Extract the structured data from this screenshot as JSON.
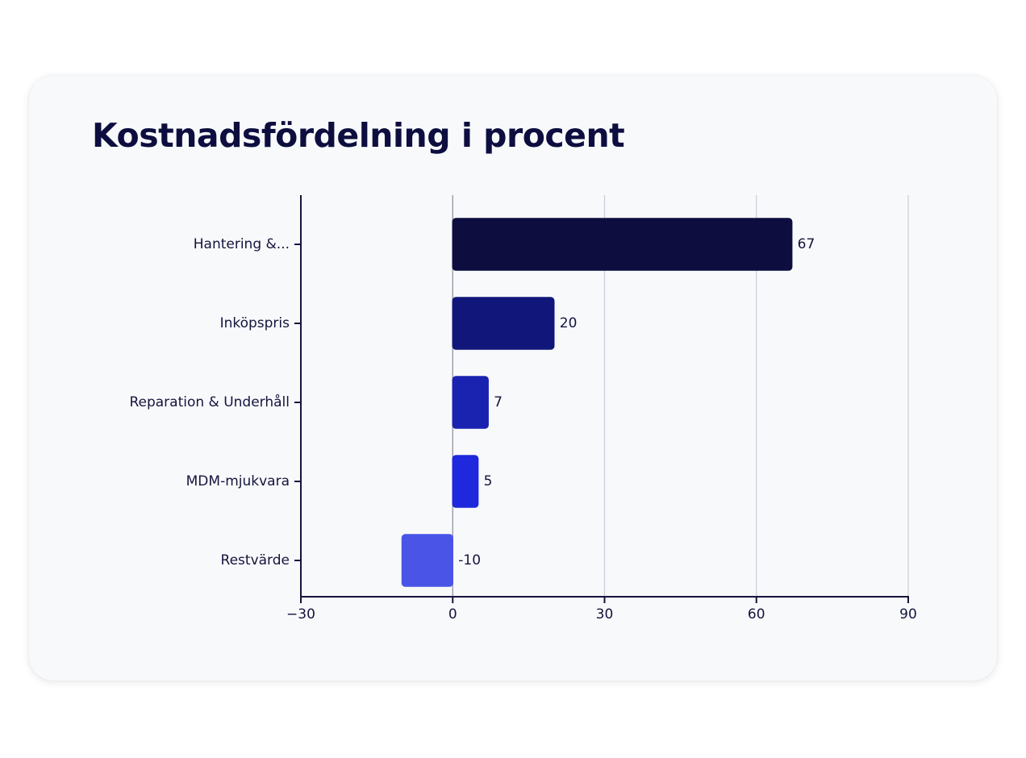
{
  "chart_data": {
    "type": "bar",
    "orientation": "horizontal",
    "title": "Kostnadsfördelning i procent",
    "xlabel": "",
    "ylabel": "",
    "categories": [
      "Hantering &...",
      "Inköpspris",
      "Reparation & Underhåll",
      "MDM-mjukvara",
      "Restvärde"
    ],
    "values": [
      67,
      20,
      7,
      5,
      -10
    ],
    "data_labels": [
      "67",
      "20",
      "7",
      "5",
      "-10"
    ],
    "bar_colors": [
      "#0d0e3f",
      "#11177a",
      "#1a23b0",
      "#1f28dc",
      "#4a55e8"
    ],
    "xlim": [
      -30,
      90
    ],
    "ticks": [
      -30,
      0,
      30,
      60,
      90
    ],
    "tick_labels": [
      "−30",
      "0",
      "30",
      "60",
      "90"
    ],
    "grid": true,
    "legend": "none"
  }
}
